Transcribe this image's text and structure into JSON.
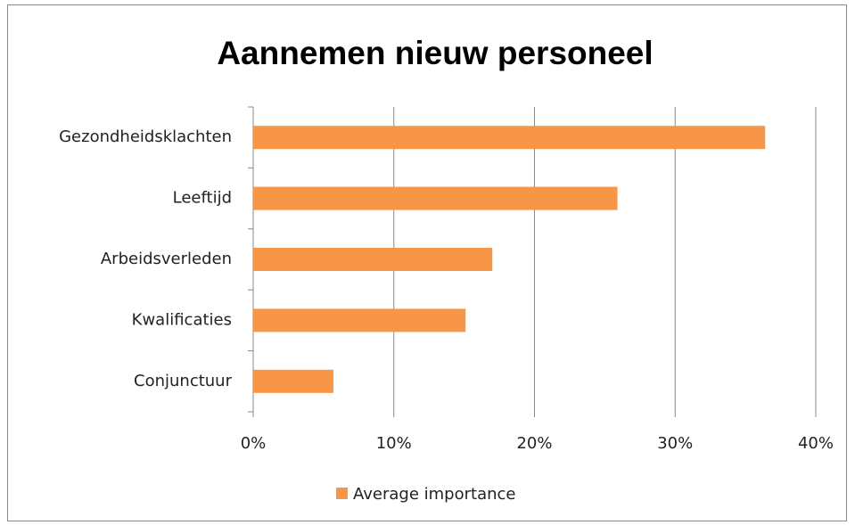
{
  "chart_data": {
    "type": "bar",
    "orientation": "horizontal",
    "title": "Aannemen nieuw personeel",
    "categories": [
      "Gezondheidsklachten",
      "Leeftijd",
      "Arbeidsverleden",
      "Kwalificaties",
      "Conjunctuur"
    ],
    "series": [
      {
        "name": "Average importance",
        "color": "#f79646",
        "values": [
          36.4,
          25.9,
          17.0,
          15.1,
          5.7
        ]
      }
    ],
    "xlim": [
      0,
      40
    ],
    "xticks": [
      {
        "value": 0,
        "label": "0%"
      },
      {
        "value": 10,
        "label": "10%"
      },
      {
        "value": 20,
        "label": "20%"
      },
      {
        "value": 30,
        "label": "30%"
      },
      {
        "value": 40,
        "label": "40%"
      }
    ],
    "grid": true,
    "legend": "bottom"
  }
}
